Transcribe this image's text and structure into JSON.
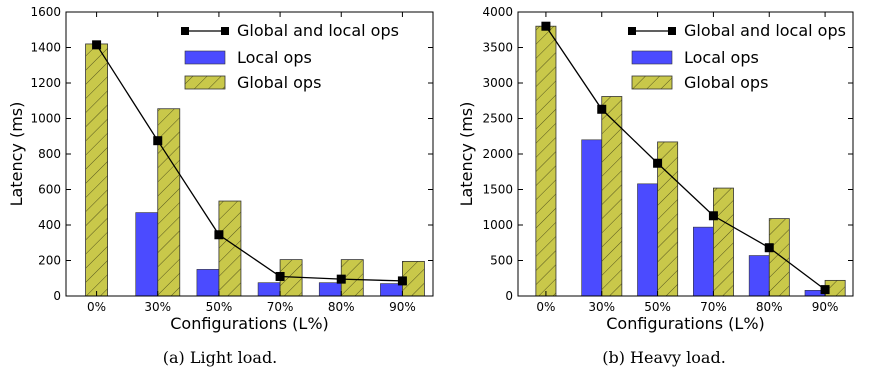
{
  "chart_data": [
    {
      "type": "bar",
      "caption": "(a) Light load.",
      "xlabel": "Configurations (L%)",
      "ylabel": "Latency (ms)",
      "ylim": [
        0,
        1600
      ],
      "yticks": [
        0,
        200,
        400,
        600,
        800,
        1000,
        1200,
        1400,
        1600
      ],
      "categories": [
        "0%",
        "30%",
        "50%",
        "70%",
        "80%",
        "90%"
      ],
      "legend_position": "top-right",
      "series": [
        {
          "name": "Global and local ops",
          "kind": "line",
          "color": "#000000",
          "values": [
            1415,
            875,
            345,
            110,
            95,
            85
          ]
        },
        {
          "name": "Local ops",
          "kind": "bar",
          "color": "#4b4bff",
          "values": [
            null,
            470,
            150,
            75,
            75,
            70
          ]
        },
        {
          "name": "Global ops",
          "kind": "bar",
          "color": "#c9c84a",
          "hatch": true,
          "values": [
            1420,
            1055,
            535,
            205,
            205,
            195
          ]
        }
      ]
    },
    {
      "type": "bar",
      "caption": "(b) Heavy load.",
      "xlabel": "Configurations (L%)",
      "ylabel": "Latency (ms)",
      "ylim": [
        0,
        4000
      ],
      "yticks": [
        0,
        500,
        1000,
        1500,
        2000,
        2500,
        3000,
        3500,
        4000
      ],
      "categories": [
        "0%",
        "30%",
        "50%",
        "70%",
        "80%",
        "90%"
      ],
      "legend_position": "top-right",
      "series": [
        {
          "name": "Global and local ops",
          "kind": "line",
          "color": "#000000",
          "values": [
            3800,
            2630,
            1870,
            1130,
            680,
            90
          ]
        },
        {
          "name": "Local ops",
          "kind": "bar",
          "color": "#4b4bff",
          "values": [
            null,
            2200,
            1580,
            970,
            570,
            80
          ]
        },
        {
          "name": "Global ops",
          "kind": "bar",
          "color": "#c9c84a",
          "hatch": true,
          "values": [
            3800,
            2810,
            2170,
            1520,
            1090,
            220
          ]
        }
      ]
    }
  ]
}
